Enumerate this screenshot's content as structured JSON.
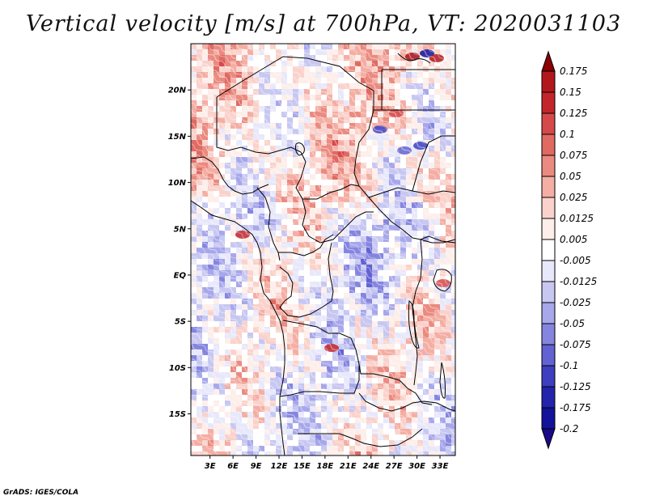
{
  "title": "Vertical velocity [m/s] at 700hPa, VT: 2020031103",
  "credit": "GrADS: IGES/COLA",
  "map": {
    "lat_labels": [
      "20N",
      "15N",
      "10N",
      "5N",
      "EQ",
      "5S",
      "10S",
      "15S"
    ],
    "lat_values": [
      20,
      15,
      10,
      5,
      0,
      -5,
      -10,
      -15
    ],
    "lon_labels": [
      "3E",
      "6E",
      "9E",
      "12E",
      "15E",
      "18E",
      "21E",
      "24E",
      "27E",
      "30E",
      "33E"
    ],
    "lon_values": [
      3,
      6,
      9,
      12,
      15,
      18,
      21,
      24,
      27,
      30,
      33
    ],
    "lon_range": [
      0.5,
      35.0
    ],
    "lat_range": [
      -19.5,
      25.0
    ]
  },
  "colorbar": {
    "levels": [
      "0.175",
      "0.15",
      "0.125",
      "0.1",
      "0.075",
      "0.05",
      "0.025",
      "0.0125",
      "0.005",
      "-0.005",
      "-0.0125",
      "-0.025",
      "-0.05",
      "-0.075",
      "-0.1",
      "-0.125",
      "-0.175",
      "-0.2"
    ],
    "colors": [
      "#a50f15",
      "#b2181b",
      "#c3262a",
      "#d6494a",
      "#e06a62",
      "#ea8a80",
      "#f4aea4",
      "#fad2cb",
      "#fdeeea",
      "#ffffff",
      "#e8e8fb",
      "#c7c7f2",
      "#a7a7eb",
      "#8585e0",
      "#6262d2",
      "#3e3ec0",
      "#2323ac",
      "#12129a",
      "#0a0a7a"
    ],
    "top_tip_color": "#8b0000",
    "bottom_tip_color": "#1a0a8a"
  }
}
